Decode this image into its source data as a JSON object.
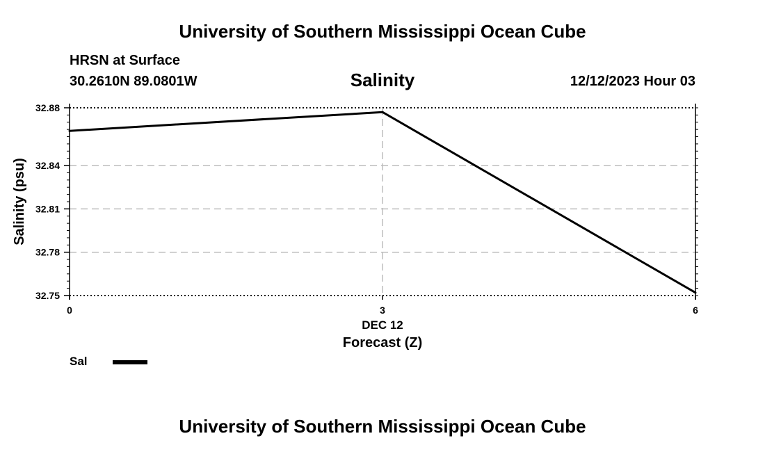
{
  "header": {
    "title": "University of Southern Mississippi Ocean Cube",
    "station": "HRSN at Surface",
    "coordinates": "30.2610N  89.0801W",
    "chart_title": "Salinity",
    "datetime": "12/12/2023 Hour 03"
  },
  "footer": {
    "title": "University of Southern Mississippi Ocean Cube"
  },
  "chart_data": {
    "type": "line",
    "title": "Salinity",
    "xlabel": "Forecast (Z)",
    "xlabel_date": "DEC 12",
    "ylabel": "Salinity (psu)",
    "x": [
      0,
      3,
      6
    ],
    "x_ticks": [
      "0",
      "3",
      "6"
    ],
    "ylim": [
      32.75,
      32.88
    ],
    "y_ticks": [
      "32.75",
      "32.78",
      "32.81",
      "32.84",
      "32.88"
    ],
    "y_tick_values": [
      32.75,
      32.78,
      32.81,
      32.84,
      32.88
    ],
    "grid": true,
    "series": [
      {
        "name": "Sal",
        "values": [
          32.864,
          32.877,
          32.752
        ],
        "color": "#000000"
      }
    ],
    "legend_position": "bottom-left"
  }
}
